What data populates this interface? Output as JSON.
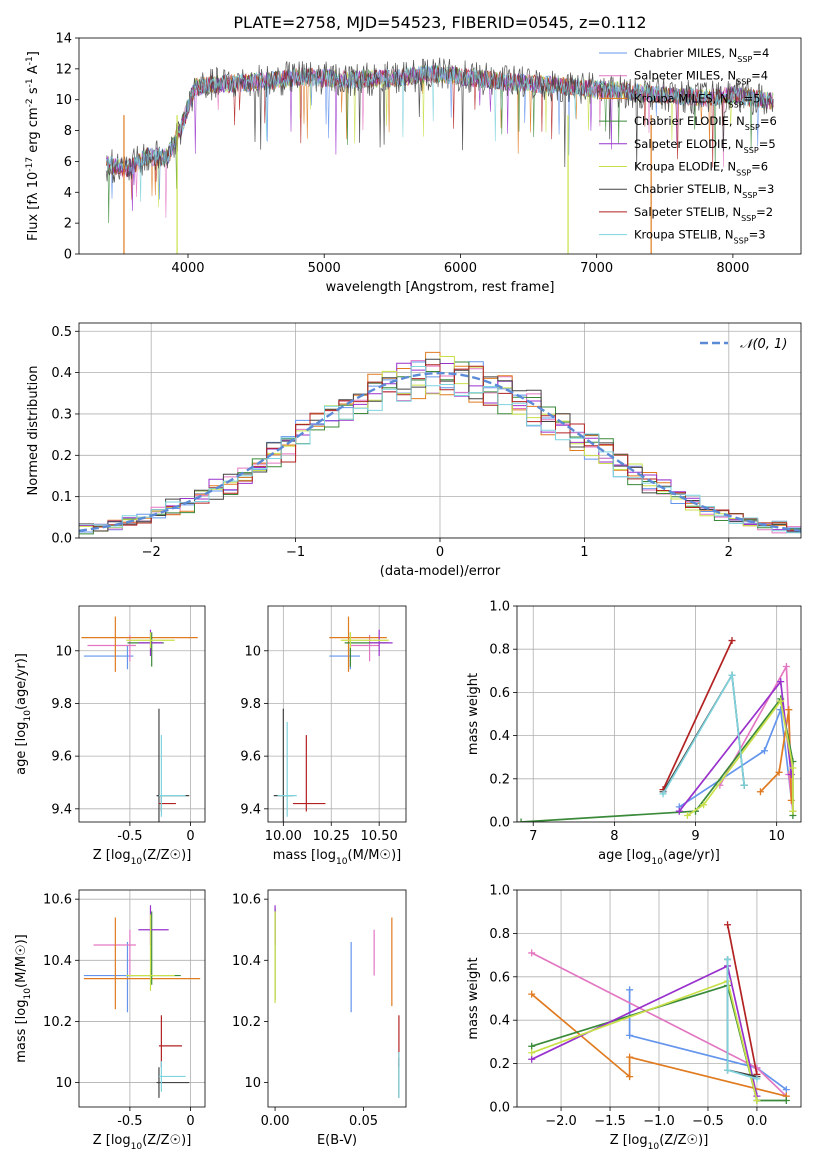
{
  "figure": {
    "title": "PLATE=2758, MJD=54523, FIBERID=0545, z=0.112"
  },
  "models": [
    {
      "name": "Chabrier MILES, N$_{SSP}$=4",
      "legend": "Chabrier MILES, N",
      "ssp": "4",
      "color": "#6495ED"
    },
    {
      "name": "Salpeter MILES, N$_{SSP}$=4",
      "legend": "Salpeter MILES, N",
      "ssp": "4",
      "color": "#e377c2"
    },
    {
      "name": "Kroupa MILES, N$_{SSP}$=5",
      "legend": "Kroupa MILES, N",
      "ssp": "5",
      "color": "#e07b20"
    },
    {
      "name": "Chabrier ELODIE, N$_{SSP}$=6",
      "legend": "Chabrier ELODIE, N",
      "ssp": "6",
      "color": "#3a8a3a"
    },
    {
      "name": "Salpeter ELODIE, N$_{SSP}$=5",
      "legend": "Salpeter ELODIE, N",
      "ssp": "5",
      "color": "#9932cc"
    },
    {
      "name": "Kroupa ELODIE, N$_{SSP}$=6",
      "legend": "Kroupa ELODIE, N",
      "ssp": "6",
      "color": "#c9e04a"
    },
    {
      "name": "Chabrier STELIB, N$_{SSP}$=3",
      "legend": "Chabrier STELIB, N",
      "ssp": "3",
      "color": "#444444"
    },
    {
      "name": "Salpeter STELIB, N$_{SSP}$=2",
      "legend": "Salpeter STELIB, N",
      "ssp": "2",
      "color": "#b22222"
    },
    {
      "name": "Kroupa STELIB, N$_{SSP}$=3",
      "legend": "Kroupa STELIB, N",
      "ssp": "3",
      "color": "#7ed3dd"
    }
  ],
  "chart_data": [
    {
      "id": "spectrum",
      "type": "line",
      "title": "PLATE=2758, MJD=54523, FIBERID=0545, z=0.112",
      "xlabel": "wavelength [Angstrom, rest frame]",
      "ylabel": "Flux [f$_\\lambda$ 10$^{-17}$ erg cm$^{-2}$ s$^{-1}$ A$^{-1}$]",
      "xlim": [
        3200,
        8500
      ],
      "ylim": [
        0,
        14
      ],
      "xticks": [
        4000,
        5000,
        6000,
        7000,
        8000
      ],
      "yticks": [
        0,
        2,
        4,
        6,
        8,
        10,
        12,
        14
      ],
      "grid": false,
      "legend": "top-right",
      "continuum": {
        "x": [
          3400,
          3550,
          3700,
          3850,
          3950,
          4050,
          4200,
          4400,
          4600,
          4800,
          5000,
          5200,
          5500,
          5800,
          6000,
          6300,
          6600,
          7000,
          7400,
          7800,
          8000,
          8300
        ],
        "y": [
          5.8,
          5.5,
          6.3,
          6.3,
          8.2,
          10.8,
          11.0,
          11.1,
          11.2,
          11.5,
          11.4,
          11.3,
          11.4,
          11.7,
          11.5,
          11.2,
          11.0,
          10.7,
          10.4,
          10.1,
          10.3,
          9.9
        ]
      },
      "model_drops": [
        {
          "model": 2,
          "x": 3530
        },
        {
          "model": 5,
          "x": 3920
        },
        {
          "model": 5,
          "x": 6790
        },
        {
          "model": 2,
          "x": 7400
        }
      ]
    },
    {
      "id": "residuals",
      "type": "line",
      "xlabel": "(data-model)/error",
      "ylabel": "Normed distribution",
      "xlim": [
        -2.5,
        2.5
      ],
      "ylim": [
        0,
        0.52
      ],
      "xticks": [
        -2,
        -1,
        0,
        1,
        2
      ],
      "xticklabels": [
        "−2",
        "−1",
        "0",
        "1",
        "2"
      ],
      "yticks": [
        0,
        0.1,
        0.2,
        0.3,
        0.4,
        0.5
      ],
      "grid": true,
      "legend": "top-right",
      "reference": {
        "name": "N(0,1)",
        "label": "𝒩(0, 1)",
        "mean": 0,
        "sigma": 1,
        "color": "#5b8ad6"
      }
    },
    {
      "id": "age-vs-Z",
      "type": "scatter",
      "xlabel": "Z [log$_{10}$(Z/Z$_\\odot$)]",
      "ylabel": "age [log$_{10}$(age/yr)]",
      "xlim": [
        -0.92,
        0.12
      ],
      "ylim": [
        9.35,
        10.17
      ],
      "xticks": [
        -0.5,
        0.0
      ],
      "yticks": [
        9.4,
        9.6,
        9.8,
        10.0
      ],
      "grid": true,
      "points": [
        {
          "m": 0,
          "x": -0.52,
          "y": 9.98,
          "xe": [
            0.36,
            0.05
          ],
          "ye": [
            0.05,
            0.04
          ]
        },
        {
          "m": 1,
          "x": -0.5,
          "y": 10.02,
          "xe": [
            0.35,
            0.05
          ],
          "ye": [
            0.06,
            0.04
          ]
        },
        {
          "m": 2,
          "x": -0.62,
          "y": 10.05,
          "xe": [
            0.28,
            0.68
          ],
          "ye": [
            0.13,
            0.08
          ]
        },
        {
          "m": 3,
          "x": -0.32,
          "y": 10.03,
          "xe": [
            0.2,
            0.1
          ],
          "ye": [
            0.09,
            0.04
          ]
        },
        {
          "m": 4,
          "x": -0.33,
          "y": 10.03,
          "xe": [
            0.1,
            0.1
          ],
          "ye": [
            0.05,
            0.05
          ]
        },
        {
          "m": 5,
          "x": -0.33,
          "y": 10.04,
          "xe": [
            0.2,
            0.2
          ],
          "ye": [
            0.03,
            0.03
          ]
        },
        {
          "m": 6,
          "x": -0.26,
          "y": 9.45,
          "xe": [
            0.02,
            0.25
          ],
          "ye": [
            0.1,
            0.33
          ]
        },
        {
          "m": 7,
          "x": -0.24,
          "y": 9.42,
          "xe": [
            0.02,
            0.12
          ],
          "ye": [
            0.03,
            0.03
          ]
        },
        {
          "m": 8,
          "x": -0.24,
          "y": 9.45,
          "xe": [
            0.02,
            0.2
          ],
          "ye": [
            0.08,
            0.23
          ]
        }
      ]
    },
    {
      "id": "age-vs-mass",
      "type": "scatter",
      "xlabel": "mass [log$_{10}$(M/M$_\\odot$)]",
      "ylabel": "",
      "xlim": [
        9.92,
        10.64
      ],
      "ylim": [
        9.35,
        10.17
      ],
      "xticks": [
        10.0,
        10.25,
        10.5
      ],
      "xticklabels": [
        "10.00",
        "10.25",
        "10.50"
      ],
      "yticks": [
        9.4,
        9.6,
        9.8,
        10.0
      ],
      "grid": true,
      "points": [
        {
          "m": 0,
          "x": 10.35,
          "y": 9.98,
          "xe": [
            0.11,
            0.05
          ],
          "ye": [
            0.05,
            0.04
          ]
        },
        {
          "m": 1,
          "x": 10.45,
          "y": 10.02,
          "xe": [
            0.1,
            0.05
          ],
          "ye": [
            0.06,
            0.04
          ]
        },
        {
          "m": 2,
          "x": 10.34,
          "y": 10.05,
          "xe": [
            0.1,
            0.2
          ],
          "ye": [
            0.13,
            0.08
          ]
        },
        {
          "m": 3,
          "x": 10.35,
          "y": 10.03,
          "xe": [
            0.03,
            0.2
          ],
          "ye": [
            0.09,
            0.04
          ]
        },
        {
          "m": 4,
          "x": 10.5,
          "y": 10.03,
          "xe": [
            0.05,
            0.07
          ],
          "ye": [
            0.05,
            0.05
          ]
        },
        {
          "m": 5,
          "x": 10.35,
          "y": 10.04,
          "xe": [
            0.05,
            0.2
          ],
          "ye": [
            0.03,
            0.03
          ]
        },
        {
          "m": 6,
          "x": 10.0,
          "y": 9.45,
          "xe": [
            0.05,
            0.05
          ],
          "ye": [
            0.1,
            0.33
          ]
        },
        {
          "m": 7,
          "x": 10.12,
          "y": 9.42,
          "xe": [
            0.07,
            0.1
          ],
          "ye": [
            0.03,
            0.26
          ]
        },
        {
          "m": 8,
          "x": 10.02,
          "y": 9.45,
          "xe": [
            0.05,
            0.05
          ],
          "ye": [
            0.08,
            0.28
          ]
        }
      ]
    },
    {
      "id": "massweight-vs-age",
      "type": "line",
      "xlabel": "age [log$_{10}$(age/yr)]",
      "ylabel": "mass weight",
      "xlim": [
        6.8,
        10.3
      ],
      "ylim": [
        0,
        1.0
      ],
      "xticks": [
        7,
        8,
        9,
        10
      ],
      "yticks": [
        0.0,
        0.2,
        0.4,
        0.6,
        0.8,
        1.0
      ],
      "grid": true,
      "series": [
        {
          "m": 0,
          "points": [
            [
              8.8,
              0.07
            ],
            [
              9.85,
              0.33
            ],
            [
              10.05,
              0.52
            ],
            [
              10.2,
              0.05
            ]
          ]
        },
        {
          "m": 1,
          "points": [
            [
              9.3,
              0.17
            ],
            [
              10.12,
              0.72
            ],
            [
              10.2,
              0.05
            ],
            [
              10.15,
              0.22
            ]
          ]
        },
        {
          "m": 2,
          "points": [
            [
              9.8,
              0.14
            ],
            [
              10.03,
              0.23
            ],
            [
              10.15,
              0.52
            ],
            [
              10.18,
              0.1
            ]
          ]
        },
        {
          "m": 3,
          "points": [
            [
              6.85,
              0.0
            ],
            [
              9.0,
              0.05
            ],
            [
              10.05,
              0.57
            ],
            [
              10.2,
              0.28
            ],
            [
              10.2,
              0.03
            ]
          ]
        },
        {
          "m": 4,
          "points": [
            [
              8.8,
              0.05
            ],
            [
              10.05,
              0.65
            ],
            [
              10.18,
              0.22
            ]
          ]
        },
        {
          "m": 5,
          "points": [
            [
              8.9,
              0.03
            ],
            [
              9.1,
              0.08
            ],
            [
              10.05,
              0.56
            ],
            [
              10.2,
              0.25
            ],
            [
              10.2,
              0.05
            ]
          ]
        },
        {
          "m": 6,
          "points": [
            [
              8.6,
              0.14
            ],
            [
              9.45,
              0.68
            ],
            [
              9.6,
              0.17
            ]
          ]
        },
        {
          "m": 7,
          "points": [
            [
              8.6,
              0.15
            ],
            [
              9.45,
              0.84
            ]
          ]
        },
        {
          "m": 8,
          "points": [
            [
              8.6,
              0.13
            ],
            [
              9.45,
              0.68
            ],
            [
              9.6,
              0.17
            ]
          ]
        }
      ]
    },
    {
      "id": "mass-vs-Z",
      "type": "scatter",
      "xlabel": "Z [log$_{10}$(Z/Z$_\\odot$)]",
      "ylabel": "mass [log$_{10}$(M/M$_\\odot$)]",
      "xlim": [
        -0.92,
        0.12
      ],
      "ylim": [
        9.92,
        10.63
      ],
      "xticks": [
        -0.5,
        0.0
      ],
      "yticks": [
        10.0,
        10.2,
        10.4,
        10.6
      ],
      "grid": true,
      "points": [
        {
          "m": 0,
          "x": -0.52,
          "y": 10.35,
          "xe": [
            0.36,
            0.05
          ],
          "ye": [
            0.12,
            0.11
          ]
        },
        {
          "m": 1,
          "x": -0.5,
          "y": 10.45,
          "xe": [
            0.3,
            0.05
          ],
          "ye": [
            0.1,
            0.05
          ]
        },
        {
          "m": 2,
          "x": -0.62,
          "y": 10.34,
          "xe": [
            0.26,
            0.7
          ],
          "ye": [
            0.1,
            0.2
          ]
        },
        {
          "m": 3,
          "x": -0.32,
          "y": 10.35,
          "xe": [
            0.2,
            0.24
          ],
          "ye": [
            0.03,
            0.21
          ]
        },
        {
          "m": 4,
          "x": -0.33,
          "y": 10.5,
          "xe": [
            0.1,
            0.15
          ],
          "ye": [
            0.05,
            0.08
          ]
        },
        {
          "m": 5,
          "x": -0.33,
          "y": 10.35,
          "xe": [
            0.2,
            0.2
          ],
          "ye": [
            0.05,
            0.2
          ]
        },
        {
          "m": 6,
          "x": -0.26,
          "y": 10.0,
          "xe": [
            0.02,
            0.25
          ],
          "ye": [
            0.05,
            0.05
          ]
        },
        {
          "m": 7,
          "x": -0.24,
          "y": 10.12,
          "xe": [
            0.02,
            0.17
          ],
          "ye": [
            0.07,
            0.1
          ]
        },
        {
          "m": 8,
          "x": -0.24,
          "y": 10.02,
          "xe": [
            0.02,
            0.2
          ],
          "ye": [
            0.05,
            0.05
          ]
        }
      ]
    },
    {
      "id": "mass-vs-EBV",
      "type": "scatter",
      "xlabel": "E(B-V)",
      "ylabel": "",
      "xlim": [
        -0.004,
        0.074
      ],
      "ylim": [
        9.92,
        10.63
      ],
      "xticks": [
        0.0,
        0.05
      ],
      "xticklabels": [
        "0.00",
        "0.05"
      ],
      "yticks": [
        10.0,
        10.2,
        10.4,
        10.6
      ],
      "grid": false,
      "points": [
        {
          "m": 0,
          "x": 0.043,
          "y": 10.35,
          "ye": [
            0.12,
            0.11
          ]
        },
        {
          "m": 1,
          "x": 0.056,
          "y": 10.43,
          "ye": [
            0.08,
            0.07
          ]
        },
        {
          "m": 2,
          "x": 0.066,
          "y": 10.39,
          "ye": [
            0.14,
            0.15
          ]
        },
        {
          "m": 3,
          "x": 0.0,
          "y": 10.42,
          "ye": [
            0.15,
            0.15
          ]
        },
        {
          "m": 4,
          "x": 0.0,
          "y": 10.5,
          "ye": [
            0.05,
            0.08
          ]
        },
        {
          "m": 5,
          "x": 0.0,
          "y": 10.4,
          "ye": [
            0.14,
            0.16
          ]
        },
        {
          "m": 6,
          "x": 0.07,
          "y": 10.02,
          "ye": [
            0.07,
            0.06
          ]
        },
        {
          "m": 7,
          "x": 0.07,
          "y": 10.12,
          "ye": [
            0.07,
            0.1
          ]
        },
        {
          "m": 8,
          "x": 0.07,
          "y": 10.0,
          "ye": [
            0.05,
            0.1
          ]
        }
      ]
    },
    {
      "id": "massweight-vs-Z",
      "type": "line",
      "xlabel": "Z [log$_{10}$(Z/Z$_\\odot$)]",
      "ylabel": "mass weight",
      "xlim": [
        -2.45,
        0.45
      ],
      "ylim": [
        0,
        1.0
      ],
      "xticks": [
        -2.0,
        -1.5,
        -1.0,
        -0.5,
        0.0
      ],
      "xticklabels": [
        "−2.0",
        "−1.5",
        "−1.0",
        "−0.5",
        "0.0"
      ],
      "yticks": [
        0.0,
        0.2,
        0.4,
        0.6,
        0.8,
        1.0
      ],
      "grid": true,
      "series": [
        {
          "m": 0,
          "points": [
            [
              -1.3,
              0.54
            ],
            [
              -1.3,
              0.33
            ],
            [
              0.0,
              0.18
            ],
            [
              0.3,
              0.08
            ]
          ]
        },
        {
          "m": 1,
          "points": [
            [
              -2.3,
              0.71
            ],
            [
              0.0,
              0.18
            ],
            [
              0.3,
              0.05
            ]
          ]
        },
        {
          "m": 2,
          "points": [
            [
              -2.3,
              0.52
            ],
            [
              -1.3,
              0.14
            ],
            [
              -1.3,
              0.23
            ],
            [
              0.3,
              0.05
            ]
          ]
        },
        {
          "m": 3,
          "points": [
            [
              -2.3,
              0.28
            ],
            [
              -0.3,
              0.56
            ],
            [
              0.0,
              0.03
            ],
            [
              0.3,
              0.03
            ]
          ]
        },
        {
          "m": 4,
          "points": [
            [
              -2.3,
              0.22
            ],
            [
              -0.3,
              0.65
            ],
            [
              0.0,
              0.05
            ]
          ]
        },
        {
          "m": 5,
          "points": [
            [
              -2.3,
              0.25
            ],
            [
              -0.3,
              0.58
            ],
            [
              0.0,
              0.03
            ]
          ]
        },
        {
          "m": 6,
          "points": [
            [
              -0.3,
              0.68
            ],
            [
              -0.3,
              0.17
            ],
            [
              0.0,
              0.14
            ]
          ]
        },
        {
          "m": 7,
          "points": [
            [
              -0.3,
              0.84
            ],
            [
              0.0,
              0.15
            ]
          ]
        },
        {
          "m": 8,
          "points": [
            [
              -0.3,
              0.68
            ],
            [
              -0.3,
              0.17
            ],
            [
              0.0,
              0.13
            ]
          ]
        }
      ]
    }
  ]
}
